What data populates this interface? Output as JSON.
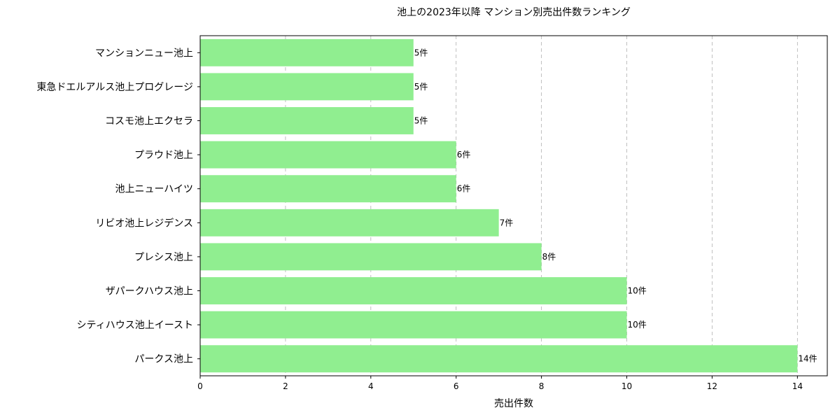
{
  "chart_data": {
    "type": "bar",
    "orientation": "horizontal",
    "title": "池上の2023年以降 マンション別売出件数ランキング",
    "xlabel": "売出件数",
    "ylabel": "",
    "categories": [
      "マンションニュー池上",
      "東急ドエルアルス池上プログレージ",
      "コスモ池上エクセラ",
      "プラウド池上",
      "池上ニューハイツ",
      "リビオ池上レジデンス",
      "プレシス池上",
      "ザパークハウス池上",
      "シティハウス池上イースト",
      "パークス池上"
    ],
    "values": [
      5,
      5,
      5,
      6,
      6,
      7,
      8,
      10,
      10,
      14
    ],
    "data_labels": [
      "5件",
      "5件",
      "5件",
      "6件",
      "6件",
      "7件",
      "8件",
      "10件",
      "10件",
      "14件"
    ],
    "xlim": [
      0,
      14.7
    ],
    "xticks": [
      0,
      2,
      4,
      6,
      8,
      10,
      12,
      14
    ],
    "xtick_labels": [
      "0",
      "2",
      "4",
      "6",
      "8",
      "10",
      "12",
      "14"
    ],
    "grid": "x-dashed",
    "bar_color": "#90ee90"
  }
}
